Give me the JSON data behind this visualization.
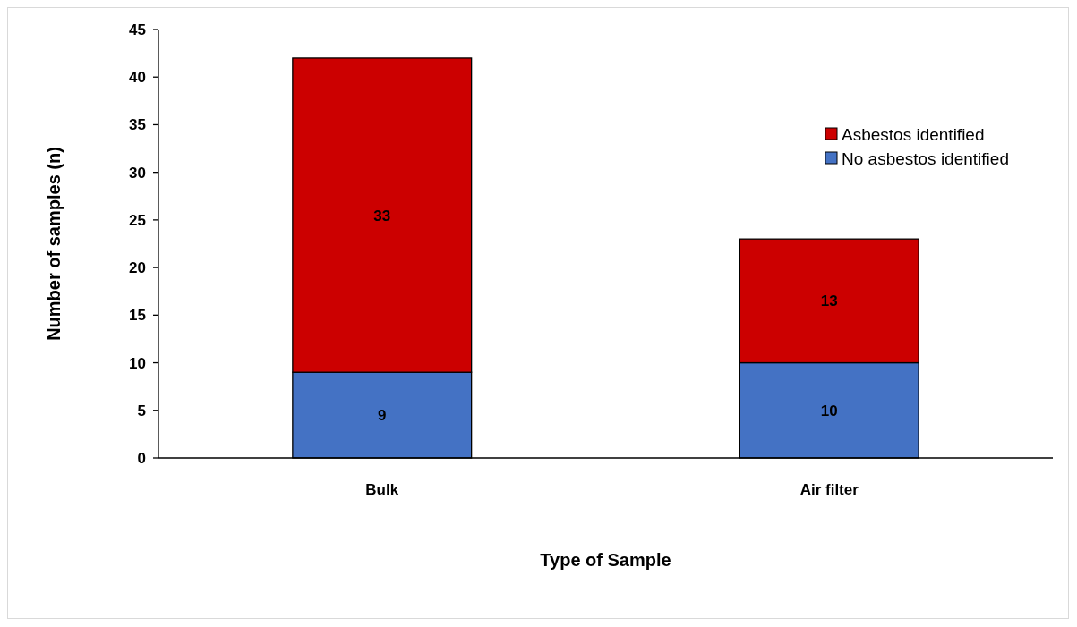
{
  "chart_data": {
    "type": "bar",
    "stacked": true,
    "xlabel": "Type of Sample",
    "ylabel": "Number of samples (n)",
    "categories": [
      "Bulk",
      "Air filter"
    ],
    "series": [
      {
        "name": "No asbestos identified",
        "color": "#4472c4",
        "values": [
          9,
          10
        ]
      },
      {
        "name": "Asbestos identified",
        "color": "#cc0000",
        "values": [
          33,
          13
        ]
      }
    ],
    "ylim": [
      0,
      45
    ],
    "yticks": [
      0,
      5,
      10,
      15,
      20,
      25,
      30,
      35,
      40,
      45
    ],
    "data_labels": true,
    "legend": "top right",
    "grid": false
  }
}
